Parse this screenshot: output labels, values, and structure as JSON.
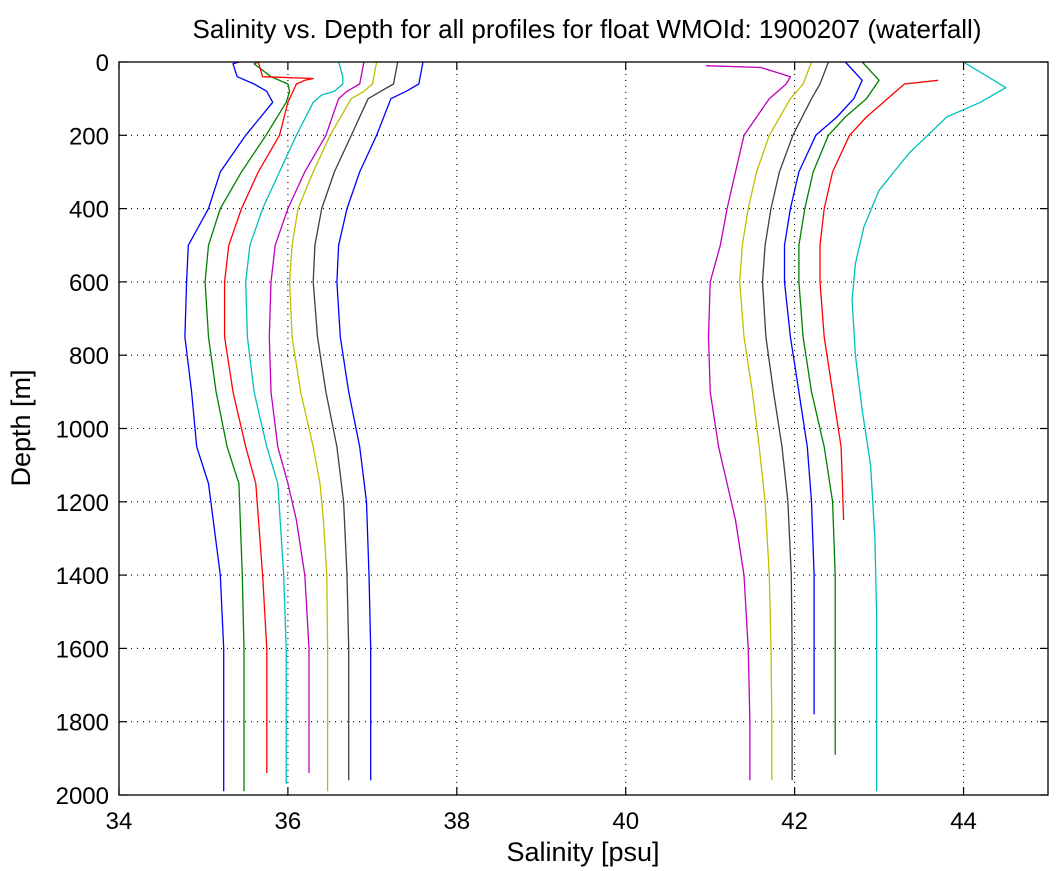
{
  "chart_data": {
    "type": "line",
    "title": "Salinity vs. Depth for all profiles for float WMOId: 1900207 (waterfall)",
    "xlabel": "Salinity [psu]",
    "ylabel": "Depth [m]",
    "xlim": [
      34,
      45
    ],
    "ylim": [
      0,
      2000
    ],
    "y_reversed": true,
    "grid": true,
    "legend": "none",
    "xticks": [
      "34",
      "36",
      "38",
      "40",
      "42",
      "44"
    ],
    "yticks": [
      "0",
      "200",
      "400",
      "600",
      "800",
      "1000",
      "1200",
      "1400",
      "1600",
      "1800",
      "2000"
    ],
    "series": [
      {
        "color": "#0000ff",
        "x": [
          35.42,
          35.35,
          35.4,
          35.6,
          35.75,
          35.82,
          35.5,
          35.2,
          35.06,
          34.82,
          34.8,
          34.78,
          34.86,
          34.92,
          35.06,
          35.2,
          35.24,
          35.24,
          35.24
        ],
        "y": [
          0,
          5,
          40,
          60,
          80,
          110,
          200,
          300,
          400,
          500,
          600,
          750,
          900,
          1050,
          1150,
          1400,
          1600,
          1800,
          1990
        ]
      },
      {
        "color": "#008000",
        "x": [
          35.65,
          35.6,
          35.8,
          36.0,
          36.02,
          35.98,
          35.74,
          35.45,
          35.2,
          35.06,
          35.02,
          35.06,
          35.15,
          35.28,
          35.42,
          35.46,
          35.48,
          35.48,
          35.48
        ],
        "y": [
          0,
          5,
          40,
          60,
          80,
          110,
          200,
          300,
          400,
          500,
          600,
          750,
          900,
          1050,
          1150,
          1400,
          1600,
          1800,
          1990
        ]
      },
      {
        "color": "#ff0000",
        "x": [
          35.65,
          35.7,
          36.3,
          36.2,
          36.1,
          36.0,
          35.9,
          35.65,
          35.45,
          35.3,
          35.25,
          35.25,
          35.35,
          35.5,
          35.62,
          35.7,
          35.75,
          35.75,
          35.75
        ],
        "y": [
          0,
          40,
          45,
          50,
          60,
          110,
          200,
          300,
          400,
          500,
          600,
          750,
          900,
          1050,
          1150,
          1400,
          1600,
          1800,
          1940
        ]
      },
      {
        "color": "#00bfbf",
        "x": [
          36.6,
          36.65,
          36.65,
          36.55,
          36.4,
          36.3,
          36.1,
          35.9,
          35.7,
          35.55,
          35.5,
          35.52,
          35.6,
          35.75,
          35.88,
          35.95,
          35.98,
          35.98,
          35.98
        ],
        "y": [
          0,
          40,
          60,
          80,
          90,
          110,
          200,
          300,
          400,
          500,
          600,
          750,
          900,
          1050,
          1150,
          1400,
          1600,
          1800,
          1970
        ]
      },
      {
        "color": "#bf00bf",
        "x": [
          36.9,
          36.85,
          36.7,
          36.6,
          36.45,
          36.2,
          36.0,
          35.85,
          35.8,
          35.78,
          35.8,
          35.88,
          36.0,
          36.1,
          36.2,
          36.25,
          36.25,
          36.25
        ],
        "y": [
          0,
          60,
          80,
          100,
          200,
          300,
          400,
          500,
          600,
          750,
          900,
          1050,
          1150,
          1250,
          1400,
          1600,
          1800,
          1940
        ]
      },
      {
        "color": "#bfbf00",
        "x": [
          37.05,
          37.0,
          36.9,
          36.75,
          36.5,
          36.3,
          36.12,
          36.05,
          36.02,
          36.05,
          36.15,
          36.3,
          36.38,
          36.42,
          36.46,
          36.47,
          36.47,
          36.47
        ],
        "y": [
          0,
          60,
          80,
          100,
          200,
          300,
          400,
          500,
          600,
          750,
          900,
          1050,
          1150,
          1250,
          1400,
          1600,
          1800,
          1990
        ]
      },
      {
        "color": "#404040",
        "x": [
          37.3,
          37.25,
          37.1,
          36.95,
          36.75,
          36.55,
          36.4,
          36.32,
          36.3,
          36.35,
          36.45,
          36.58,
          36.66,
          36.7,
          36.72,
          36.72,
          36.72
        ],
        "y": [
          0,
          60,
          80,
          100,
          200,
          300,
          400,
          500,
          600,
          750,
          900,
          1050,
          1200,
          1400,
          1600,
          1800,
          1960
        ]
      },
      {
        "color": "#0000ff",
        "x": [
          37.6,
          37.55,
          37.4,
          37.22,
          37.05,
          36.85,
          36.7,
          36.6,
          36.58,
          36.62,
          36.72,
          36.85,
          36.93,
          36.96,
          36.98,
          36.98,
          36.98
        ],
        "y": [
          0,
          60,
          80,
          100,
          200,
          300,
          400,
          500,
          600,
          750,
          900,
          1050,
          1200,
          1400,
          1600,
          1800,
          1960
        ]
      },
      {
        "color": "#bf00bf",
        "x": [
          40.95,
          41.6,
          41.95,
          41.9,
          41.7,
          41.4,
          41.3,
          41.2,
          41.12,
          41.0,
          40.98,
          41.0,
          41.1,
          41.2,
          41.3,
          41.4,
          41.45,
          41.47,
          41.47
        ],
        "y": [
          10,
          15,
          40,
          60,
          100,
          200,
          300,
          400,
          500,
          600,
          750,
          900,
          1050,
          1150,
          1250,
          1400,
          1600,
          1800,
          1960
        ]
      },
      {
        "color": "#bfbf00",
        "x": [
          42.2,
          42.1,
          41.95,
          41.7,
          41.55,
          41.45,
          41.38,
          41.35,
          41.4,
          41.5,
          41.58,
          41.65,
          41.7,
          41.72,
          41.73,
          41.73
        ],
        "y": [
          0,
          60,
          100,
          200,
          300,
          400,
          500,
          600,
          750,
          900,
          1050,
          1200,
          1400,
          1600,
          1800,
          1960
        ]
      },
      {
        "color": "#404040",
        "x": [
          42.4,
          42.3,
          42.2,
          41.98,
          41.82,
          41.72,
          41.65,
          41.62,
          41.66,
          41.75,
          41.85,
          41.92,
          41.96,
          41.97,
          41.97
        ],
        "y": [
          0,
          60,
          100,
          200,
          300,
          400,
          500,
          600,
          750,
          900,
          1050,
          1200,
          1400,
          1600,
          1960
        ]
      },
      {
        "color": "#0000ff",
        "x": [
          42.6,
          42.8,
          42.7,
          42.5,
          42.25,
          42.05,
          41.95,
          41.88,
          41.88,
          41.95,
          42.05,
          42.15,
          42.2,
          42.23,
          42.23
        ],
        "y": [
          0,
          50,
          100,
          150,
          200,
          300,
          400,
          500,
          600,
          750,
          900,
          1050,
          1200,
          1400,
          1780
        ]
      },
      {
        "color": "#008000",
        "x": [
          42.8,
          43.0,
          42.85,
          42.6,
          42.4,
          42.22,
          42.12,
          42.05,
          42.05,
          42.1,
          42.2,
          42.35,
          42.45,
          42.48,
          42.48
        ],
        "y": [
          0,
          50,
          100,
          150,
          200,
          300,
          400,
          500,
          600,
          750,
          900,
          1050,
          1200,
          1400,
          1890
        ]
      },
      {
        "color": "#ff0000",
        "x": [
          43.7,
          43.3,
          43.1,
          42.85,
          42.65,
          42.45,
          42.35,
          42.3,
          42.3,
          42.35,
          42.45,
          42.55,
          42.58
        ],
        "y": [
          50,
          60,
          100,
          150,
          200,
          300,
          400,
          500,
          600,
          750,
          900,
          1050,
          1250
        ]
      },
      {
        "color": "#00bfbf",
        "x": [
          44.0,
          44.5,
          44.2,
          43.8,
          43.35,
          43.0,
          42.82,
          42.72,
          42.68,
          42.72,
          42.8,
          42.9,
          42.95,
          42.97,
          42.97
        ],
        "y": [
          0,
          70,
          110,
          150,
          250,
          350,
          450,
          550,
          650,
          800,
          950,
          1100,
          1300,
          1500,
          1990
        ]
      }
    ]
  }
}
